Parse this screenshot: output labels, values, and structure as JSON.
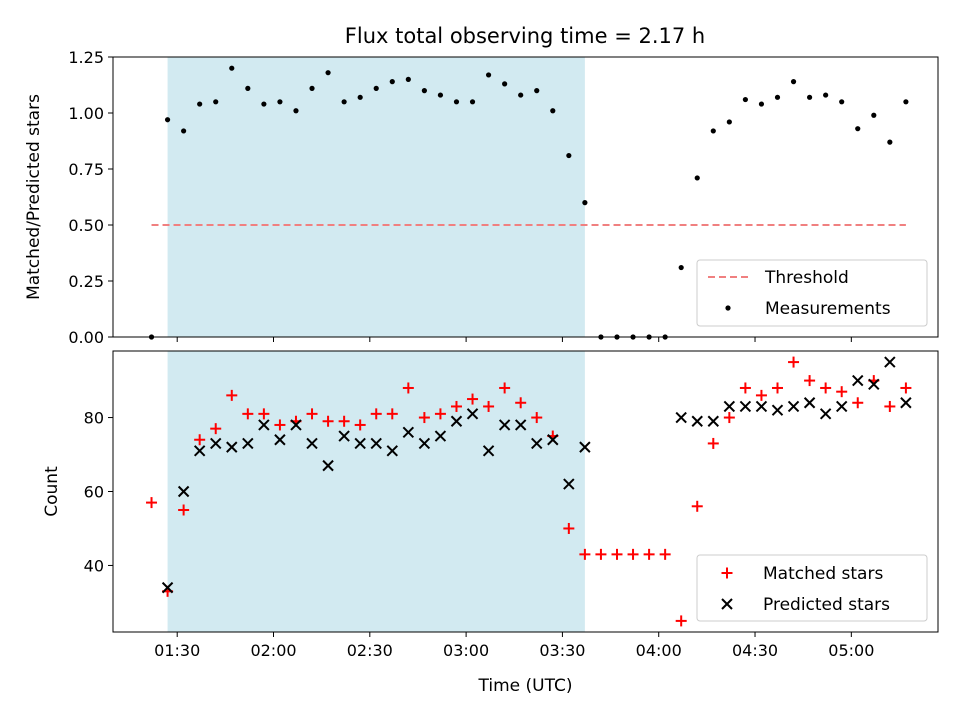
{
  "chart_data": [
    {
      "type": "scatter",
      "title": "Flux total observing time = 2.17 h",
      "xlabel": "",
      "ylabel": "Matched/Predicted stars",
      "ylim": [
        0,
        1.25
      ],
      "yticks": [
        "0.00",
        "0.25",
        "0.50",
        "0.75",
        "1.00",
        "1.25"
      ],
      "ytick_values": [
        0,
        0.25,
        0.5,
        0.75,
        1.0,
        1.25
      ],
      "shaded_span": [
        "01:27",
        "03:37"
      ],
      "shade_color": "#add8e6",
      "threshold": {
        "name": "Threshold",
        "value": 0.5,
        "from": "01:22",
        "to": "05:17",
        "color": "#f08080"
      },
      "series": [
        {
          "name": "Measurements",
          "color": "#000000",
          "x": [
            "01:22",
            "01:27",
            "01:32",
            "01:37",
            "01:42",
            "01:47",
            "01:52",
            "01:57",
            "02:02",
            "02:07",
            "02:12",
            "02:17",
            "02:22",
            "02:27",
            "02:32",
            "02:37",
            "02:42",
            "02:47",
            "02:52",
            "02:57",
            "03:02",
            "03:07",
            "03:12",
            "03:17",
            "03:22",
            "03:27",
            "03:32",
            "03:37",
            "03:42",
            "03:47",
            "03:52",
            "03:57",
            "04:02",
            "04:07",
            "04:12",
            "04:17",
            "04:22",
            "04:27",
            "04:32",
            "04:37",
            "04:42",
            "04:47",
            "04:52",
            "04:57",
            "05:02",
            "05:07",
            "05:12",
            "05:17"
          ],
          "y": [
            0.0,
            0.97,
            0.92,
            1.04,
            1.05,
            1.2,
            1.11,
            1.04,
            1.05,
            1.01,
            1.11,
            1.18,
            1.05,
            1.07,
            1.11,
            1.14,
            1.15,
            1.1,
            1.08,
            1.05,
            1.05,
            1.17,
            1.13,
            1.08,
            1.1,
            1.01,
            0.81,
            0.6,
            0.0,
            0.0,
            0.0,
            0.0,
            0.0,
            0.31,
            0.71,
            0.92,
            0.96,
            1.06,
            1.04,
            1.07,
            1.14,
            1.07,
            1.08,
            1.05,
            0.93,
            0.99,
            0.87,
            1.05
          ]
        }
      ],
      "legend": {
        "position": "lower-right"
      }
    },
    {
      "type": "scatter",
      "title": "",
      "xlabel": "Time (UTC)",
      "ylabel": "Count",
      "ylim": [
        22,
        98
      ],
      "yticks": [
        "40",
        "60",
        "80"
      ],
      "ytick_values": [
        40,
        60,
        80
      ],
      "xticks": [
        "01:30",
        "02:00",
        "02:30",
        "03:00",
        "03:30",
        "04:00",
        "04:30",
        "05:00"
      ],
      "xlim": [
        "01:10",
        "05:27"
      ],
      "shaded_span": [
        "01:27",
        "03:37"
      ],
      "shade_color": "#add8e6",
      "series": [
        {
          "name": "Matched stars",
          "color": "#ff0000",
          "marker": "plus",
          "x": [
            "01:22",
            "01:27",
            "01:32",
            "01:37",
            "01:42",
            "01:47",
            "01:52",
            "01:57",
            "02:02",
            "02:07",
            "02:12",
            "02:17",
            "02:22",
            "02:27",
            "02:32",
            "02:37",
            "02:42",
            "02:47",
            "02:52",
            "02:57",
            "03:02",
            "03:07",
            "03:12",
            "03:17",
            "03:22",
            "03:27",
            "03:32",
            "03:37",
            "03:42",
            "03:47",
            "03:52",
            "03:57",
            "04:02",
            "04:07",
            "04:12",
            "04:17",
            "04:22",
            "04:27",
            "04:32",
            "04:37",
            "04:42",
            "04:47",
            "04:52",
            "04:57",
            "05:02",
            "05:07",
            "05:12",
            "05:17"
          ],
          "y": [
            57,
            33,
            55,
            74,
            77,
            86,
            81,
            81,
            78,
            79,
            81,
            79,
            79,
            78,
            81,
            81,
            88,
            80,
            81,
            83,
            85,
            83,
            88,
            84,
            80,
            75,
            50,
            43,
            43,
            43,
            43,
            43,
            43,
            25,
            56,
            73,
            80,
            88,
            86,
            88,
            95,
            90,
            88,
            87,
            84,
            90,
            83,
            88
          ]
        },
        {
          "name": "Predicted stars",
          "color": "#000000",
          "marker": "x",
          "x": [
            "01:27",
            "01:32",
            "01:37",
            "01:42",
            "01:47",
            "01:52",
            "01:57",
            "02:02",
            "02:07",
            "02:12",
            "02:17",
            "02:22",
            "02:27",
            "02:32",
            "02:37",
            "02:42",
            "02:47",
            "02:52",
            "02:57",
            "03:02",
            "03:07",
            "03:12",
            "03:17",
            "03:22",
            "03:27",
            "03:32",
            "03:37",
            "04:07",
            "04:12",
            "04:17",
            "04:22",
            "04:27",
            "04:32",
            "04:37",
            "04:42",
            "04:47",
            "04:52",
            "04:57",
            "05:02",
            "05:07",
            "05:12",
            "05:17"
          ],
          "y": [
            34,
            60,
            71,
            73,
            72,
            73,
            78,
            74,
            78,
            73,
            67,
            75,
            73,
            73,
            71,
            76,
            73,
            75,
            79,
            81,
            71,
            78,
            78,
            73,
            74,
            62,
            72,
            80,
            79,
            79,
            83,
            83,
            83,
            82,
            83,
            84,
            81,
            83,
            90,
            89,
            95,
            84
          ]
        }
      ],
      "legend": {
        "position": "lower-right"
      }
    }
  ]
}
